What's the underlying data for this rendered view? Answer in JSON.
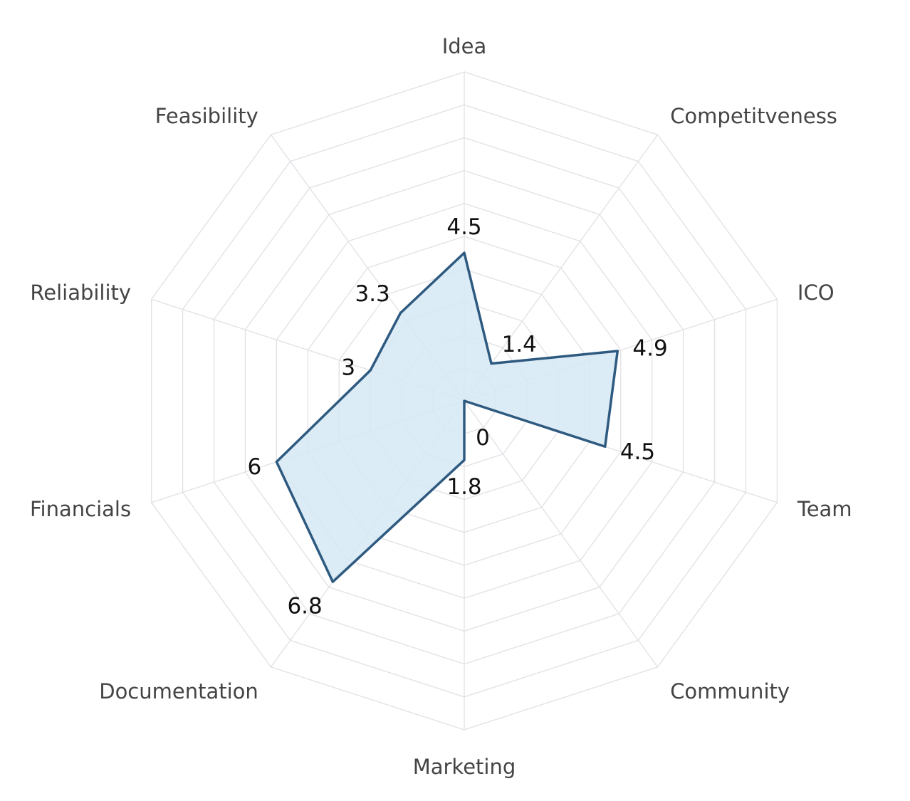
{
  "chart_data": {
    "type": "radar",
    "categories": [
      "Idea",
      "Competitveness",
      "ICO",
      "Team",
      "Community",
      "Marketing",
      "Documentation",
      "Financials",
      "Reliability",
      "Feasibility"
    ],
    "series": [
      {
        "values": [
          4.5,
          1.4,
          4.9,
          4.5,
          0,
          1.8,
          6.8,
          6,
          3,
          3.3
        ]
      }
    ],
    "data_labels": [
      "4.5",
      "1.4",
      "4.9",
      "4.5",
      "0",
      "1.8",
      "6.8",
      "6",
      "3",
      "3.3"
    ],
    "range": [
      0,
      10
    ],
    "grid_levels": 10,
    "grid": true,
    "colors": {
      "line": "#2e5a80",
      "fill": "#d6e9f5",
      "grid": "#e1e1e6"
    }
  }
}
